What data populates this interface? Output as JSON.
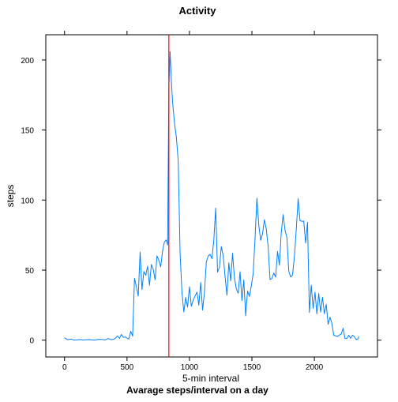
{
  "chart_data": {
    "type": "line",
    "title": "Activity",
    "xlabel": "5-min interval",
    "ylabel": "steps",
    "subtitle": "Avarage steps/interval on a day",
    "xlim": [
      -150,
      2505
    ],
    "ylim": [
      -12,
      218
    ],
    "x_ticks": [
      0,
      500,
      1000,
      1500,
      2000
    ],
    "y_ticks": [
      0,
      50,
      100,
      150,
      200
    ],
    "grid": false,
    "line_color": "#0080ff",
    "marker_line": {
      "x": 835,
      "color": "#ff0000"
    },
    "series": [
      {
        "x": [
          0,
          25,
          50,
          75,
          100,
          125,
          150,
          175,
          200,
          225,
          250,
          275,
          300,
          325,
          350,
          375,
          400,
          425,
          440,
          455,
          470,
          485,
          500,
          515,
          530,
          545,
          560,
          575,
          590,
          605,
          620,
          635,
          650,
          665,
          680,
          695,
          710,
          725,
          740,
          755,
          770,
          785,
          800,
          815,
          825,
          835,
          845,
          855,
          865,
          880,
          895,
          910,
          925,
          940,
          955,
          970,
          985,
          1000,
          1015,
          1030,
          1045,
          1060,
          1075,
          1090,
          1105,
          1120,
          1135,
          1150,
          1165,
          1180,
          1195,
          1210,
          1225,
          1240,
          1255,
          1270,
          1285,
          1300,
          1315,
          1330,
          1345,
          1360,
          1375,
          1390,
          1405,
          1420,
          1435,
          1450,
          1465,
          1480,
          1495,
          1510,
          1525,
          1540,
          1555,
          1570,
          1585,
          1600,
          1615,
          1630,
          1645,
          1660,
          1675,
          1690,
          1705,
          1720,
          1735,
          1750,
          1765,
          1780,
          1795,
          1810,
          1825,
          1840,
          1855,
          1870,
          1885,
          1900,
          1915,
          1930,
          1945,
          1960,
          1975,
          1990,
          2005,
          2020,
          2035,
          2050,
          2065,
          2080,
          2095,
          2110,
          2125,
          2140,
          2155,
          2170,
          2185,
          2200,
          2215,
          2230,
          2245,
          2260,
          2275,
          2290,
          2305,
          2320,
          2335,
          2350,
          2355
        ],
        "values": [
          1.7,
          0.3,
          0.8,
          0.1,
          0.2,
          0.5,
          0.1,
          0.3,
          0.4,
          0.1,
          0.2,
          0.6,
          0.5,
          0.2,
          1.2,
          0.3,
          0.9,
          3.0,
          1.2,
          4.1,
          2.0,
          2.3,
          1.5,
          0.8,
          6.4,
          2.8,
          44.1,
          38.2,
          31.5,
          63.0,
          36.1,
          49.0,
          46.3,
          52.8,
          39.2,
          54.0,
          50.5,
          43.1,
          60.2,
          57.0,
          52.3,
          64.0,
          70.2,
          71.5,
          68.0,
          180.0,
          206.0,
          185.0,
          170.0,
          155.0,
          145.0,
          128.0,
          62.0,
          34.0,
          20.1,
          30.5,
          23.7,
          38.1,
          24.2,
          28.5,
          31.6,
          34.3,
          25.0,
          41.2,
          21.5,
          34.0,
          55.8,
          60.1,
          61.3,
          58.2,
          71.4,
          94.3,
          48.6,
          52.0,
          66.8,
          60.3,
          45.7,
          32.1,
          55.2,
          42.4,
          62.0,
          44.3,
          36.7,
          33.5,
          48.9,
          28.3,
          43.0,
          17.4,
          35.1,
          31.2,
          38.8,
          47.4,
          72.5,
          101.4,
          82.0,
          71.3,
          75.9,
          86.0,
          79.3,
          66.8,
          43.2,
          44.1,
          47.9,
          45.0,
          63.4,
          53.5,
          77.0,
          89.6,
          78.5,
          73.1,
          49.3,
          45.1,
          46.4,
          59.7,
          79.1,
          101.0,
          85.3,
          84.8,
          85.0,
          69.3,
          84.2,
          19.8,
          39.2,
          22.7,
          34.3,
          18.8,
          33.3,
          20.1,
          30.6,
          18.8,
          25.6,
          11.3,
          16.4,
          12.0,
          3.5,
          3.1,
          2.6,
          3.7,
          4.4,
          8.5,
          1.2,
          1.1,
          3.6,
          1.3,
          3.5,
          2.6,
          0.4,
          0.9,
          2.7
        ]
      }
    ]
  }
}
